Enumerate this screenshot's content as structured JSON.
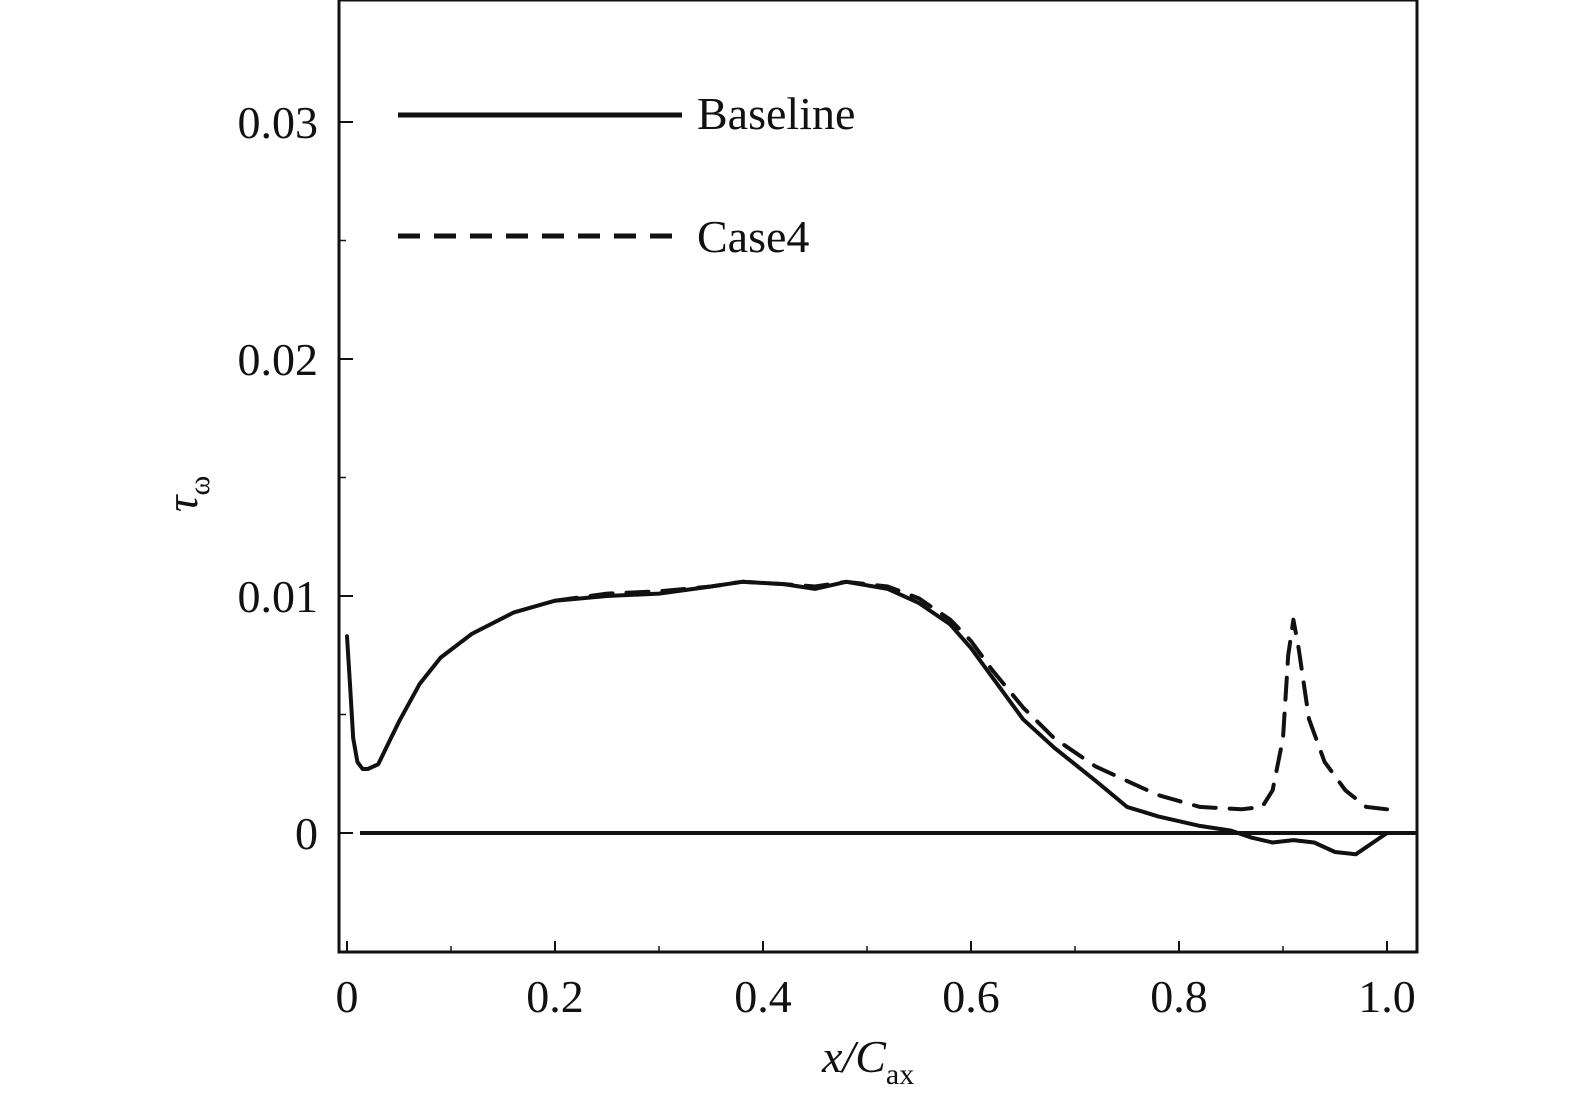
{
  "chart_data": {
    "type": "line",
    "title": "",
    "xlabel": {
      "main": "x/C",
      "sub": "ax"
    },
    "ylabel": {
      "main": "τ",
      "sub": "ω"
    },
    "xlim": [
      -0.005,
      1.025
    ],
    "ylim": [
      -0.005,
      0.035
    ],
    "x_ticks": [
      0,
      0.2,
      0.4,
      0.6,
      0.8,
      1.0
    ],
    "x_tick_labels": [
      "0",
      "0.2",
      "0.4",
      "0.6",
      "0.8",
      "1.0"
    ],
    "y_ticks": [
      0,
      0.01,
      0.02,
      0.03
    ],
    "y_tick_labels": [
      "0",
      "0.01",
      "0.02",
      "0.03"
    ],
    "grid": false,
    "legend_position": "top-left",
    "zero_line": 0,
    "series": [
      {
        "name": "Baseline",
        "style": "solid",
        "color": "#111111",
        "points": [
          [
            0.0,
            0.0083
          ],
          [
            0.003,
            0.0062
          ],
          [
            0.006,
            0.004
          ],
          [
            0.01,
            0.003
          ],
          [
            0.015,
            0.0027
          ],
          [
            0.02,
            0.0027
          ],
          [
            0.03,
            0.0029
          ],
          [
            0.04,
            0.0038
          ],
          [
            0.05,
            0.0047
          ],
          [
            0.07,
            0.0063
          ],
          [
            0.09,
            0.0074
          ],
          [
            0.12,
            0.0084
          ],
          [
            0.16,
            0.0093
          ],
          [
            0.2,
            0.0098
          ],
          [
            0.25,
            0.01
          ],
          [
            0.3,
            0.0101
          ],
          [
            0.35,
            0.0104
          ],
          [
            0.38,
            0.0106
          ],
          [
            0.42,
            0.0105
          ],
          [
            0.45,
            0.0103
          ],
          [
            0.48,
            0.0106
          ],
          [
            0.52,
            0.0103
          ],
          [
            0.55,
            0.0097
          ],
          [
            0.58,
            0.0088
          ],
          [
            0.6,
            0.0078
          ],
          [
            0.62,
            0.0066
          ],
          [
            0.65,
            0.0048
          ],
          [
            0.68,
            0.0036
          ],
          [
            0.72,
            0.0022
          ],
          [
            0.75,
            0.0011
          ],
          [
            0.78,
            0.0007
          ],
          [
            0.82,
            0.0003
          ],
          [
            0.85,
            0.0001
          ],
          [
            0.87,
            -0.0002
          ],
          [
            0.89,
            -0.0004
          ],
          [
            0.91,
            -0.0003
          ],
          [
            0.93,
            -0.0004
          ],
          [
            0.95,
            -0.0008
          ],
          [
            0.97,
            -0.0009
          ],
          [
            0.99,
            -0.0003
          ],
          [
            1.0,
            0.0
          ]
        ]
      },
      {
        "name": "Case4",
        "style": "dashed",
        "color": "#111111",
        "points": [
          [
            0.2,
            0.0098
          ],
          [
            0.25,
            0.0101
          ],
          [
            0.3,
            0.0102
          ],
          [
            0.35,
            0.0104
          ],
          [
            0.38,
            0.0106
          ],
          [
            0.42,
            0.0105
          ],
          [
            0.45,
            0.0104
          ],
          [
            0.48,
            0.0106
          ],
          [
            0.52,
            0.0104
          ],
          [
            0.55,
            0.0099
          ],
          [
            0.58,
            0.009
          ],
          [
            0.6,
            0.0081
          ],
          [
            0.62,
            0.0069
          ],
          [
            0.65,
            0.0053
          ],
          [
            0.68,
            0.004
          ],
          [
            0.72,
            0.0028
          ],
          [
            0.75,
            0.0022
          ],
          [
            0.78,
            0.0016
          ],
          [
            0.82,
            0.0011
          ],
          [
            0.86,
            0.001
          ],
          [
            0.88,
            0.0011
          ],
          [
            0.89,
            0.0018
          ],
          [
            0.9,
            0.004
          ],
          [
            0.905,
            0.0075
          ],
          [
            0.91,
            0.009
          ],
          [
            0.915,
            0.0078
          ],
          [
            0.925,
            0.0048
          ],
          [
            0.94,
            0.003
          ],
          [
            0.96,
            0.0018
          ],
          [
            0.98,
            0.0011
          ],
          [
            1.0,
            0.001
          ]
        ]
      }
    ]
  }
}
